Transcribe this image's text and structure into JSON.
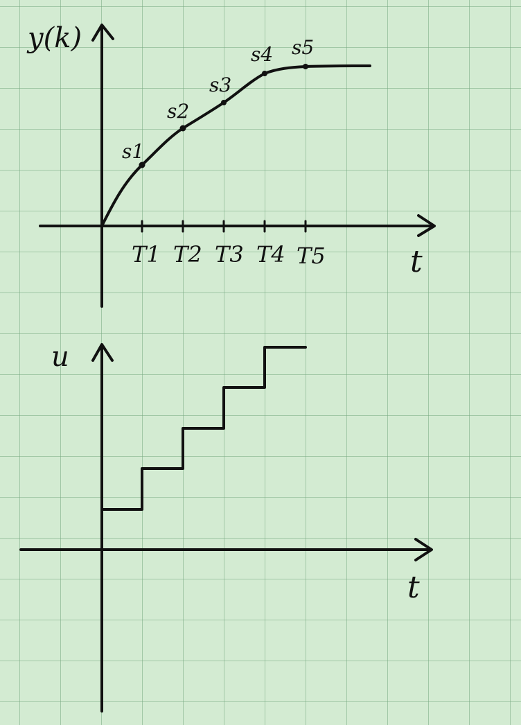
{
  "top_plot": {
    "y_axis_label": "y(k)",
    "x_axis_label": "t",
    "point_labels": [
      "s1",
      "s2",
      "s3",
      "s4",
      "s5"
    ],
    "tick_labels": [
      "T1",
      "T2",
      "T3",
      "T4",
      "T5"
    ]
  },
  "bottom_plot": {
    "y_axis_label": "u",
    "x_axis_label": "t",
    "step_count": 5
  },
  "colors": {
    "ink": "#111111",
    "paper": "#d3ebd2",
    "grid": "#78aa82"
  }
}
